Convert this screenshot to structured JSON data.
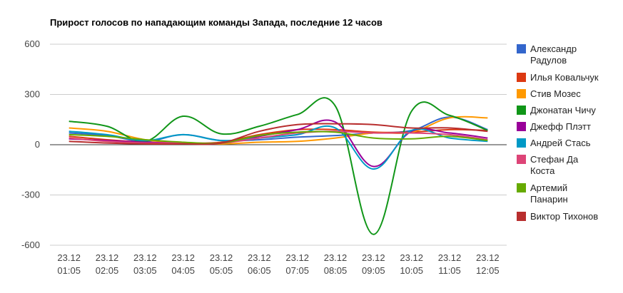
{
  "chart_data": {
    "type": "line",
    "title": "Прирост голосов по нападающим команды Запада, последние 12 часов",
    "xlabel": "",
    "ylabel": "",
    "ylim": [
      -600,
      600
    ],
    "y_ticks": [
      600,
      300,
      0,
      -300,
      -600
    ],
    "categories": [
      [
        "23.12",
        "01:05"
      ],
      [
        "23.12",
        "02:05"
      ],
      [
        "23.12",
        "03:05"
      ],
      [
        "23.12",
        "04:05"
      ],
      [
        "23.12",
        "05:05"
      ],
      [
        "23.12",
        "06:05"
      ],
      [
        "23.12",
        "07:05"
      ],
      [
        "23.12",
        "08:05"
      ],
      [
        "23.12",
        "09:05"
      ],
      [
        "23.12",
        "10:05"
      ],
      [
        "23.12",
        "11:05"
      ],
      [
        "23.12",
        "12:05"
      ]
    ],
    "grid": true,
    "legend_position": "right",
    "series": [
      {
        "name": "Александр Радулов",
        "color": "#3366cc",
        "values": [
          70,
          55,
          20,
          60,
          25,
          30,
          45,
          55,
          70,
          85,
          165,
          90
        ]
      },
      {
        "name": "Илья Ковальчук",
        "color": "#dc3912",
        "values": [
          50,
          30,
          15,
          10,
          15,
          60,
          90,
          90,
          75,
          75,
          90,
          85
        ]
      },
      {
        "name": "Стив Мозес",
        "color": "#ff9900",
        "values": [
          100,
          80,
          30,
          10,
          5,
          15,
          20,
          40,
          70,
          75,
          160,
          160
        ]
      },
      {
        "name": "Джонатан Чичу",
        "color": "#109618",
        "values": [
          140,
          110,
          20,
          170,
          65,
          110,
          180,
          230,
          -535,
          200,
          175,
          85
        ]
      },
      {
        "name": "Джефф Плэтт",
        "color": "#990099",
        "values": [
          35,
          25,
          15,
          10,
          10,
          50,
          90,
          135,
          -130,
          80,
          70,
          40
        ]
      },
      {
        "name": "Андрей Стась",
        "color": "#0099c6",
        "values": [
          80,
          60,
          25,
          60,
          25,
          40,
          60,
          100,
          -145,
          85,
          40,
          20
        ]
      },
      {
        "name": "Стефан Да Коста",
        "color": "#dd4477",
        "values": [
          40,
          20,
          10,
          10,
          10,
          40,
          70,
          80,
          70,
          70,
          60,
          30
        ]
      },
      {
        "name": "Артемий Панарин",
        "color": "#66aa00",
        "values": [
          60,
          50,
          30,
          15,
          10,
          55,
          75,
          75,
          40,
          35,
          50,
          25
        ]
      },
      {
        "name": "Виктор Тихонов",
        "color": "#b82e2e",
        "values": [
          20,
          10,
          5,
          5,
          10,
          80,
          120,
          125,
          120,
          100,
          100,
          80
        ]
      }
    ],
    "legend_lines": [
      [
        "Александр",
        "Радулов"
      ],
      [
        "Илья Ковальчук"
      ],
      [
        "Стив Мозес"
      ],
      [
        "Джонатан Чичу"
      ],
      [
        "Джефф Плэтт"
      ],
      [
        "Андрей Стась"
      ],
      [
        "Стефан Да",
        "Коста"
      ],
      [
        "Артемий",
        "Панарин"
      ],
      [
        "Виктор Тихонов"
      ]
    ]
  }
}
